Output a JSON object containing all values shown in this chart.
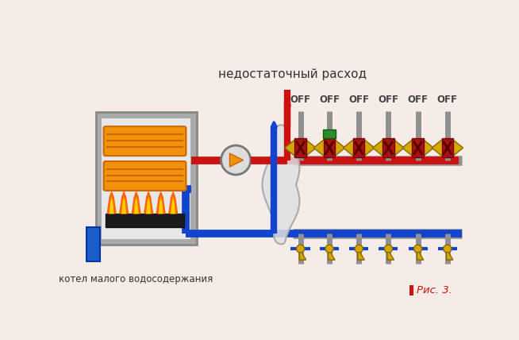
{
  "bg_color": "#f5ece8",
  "title_text": "недостаточный расход",
  "label_boiler": "котел малого водосодержания",
  "label_pic": "Рис. 3.",
  "red_color": "#cc1111",
  "orange_color": "#f0920a",
  "blue_color": "#1144cc",
  "gray_color": "#909090",
  "gray_dark": "#777777",
  "green_color": "#2a8c2a",
  "yellow_color": "#d4a800",
  "dark_red": "#991111",
  "pump_face": "#cccccc",
  "boiler_outer": "#aaaaaa",
  "boiler_inner": "#dddddd",
  "flame_orange": "#ff6600",
  "flame_yellow": "#ffcc00",
  "blue_vessel": "#1a5fc8"
}
